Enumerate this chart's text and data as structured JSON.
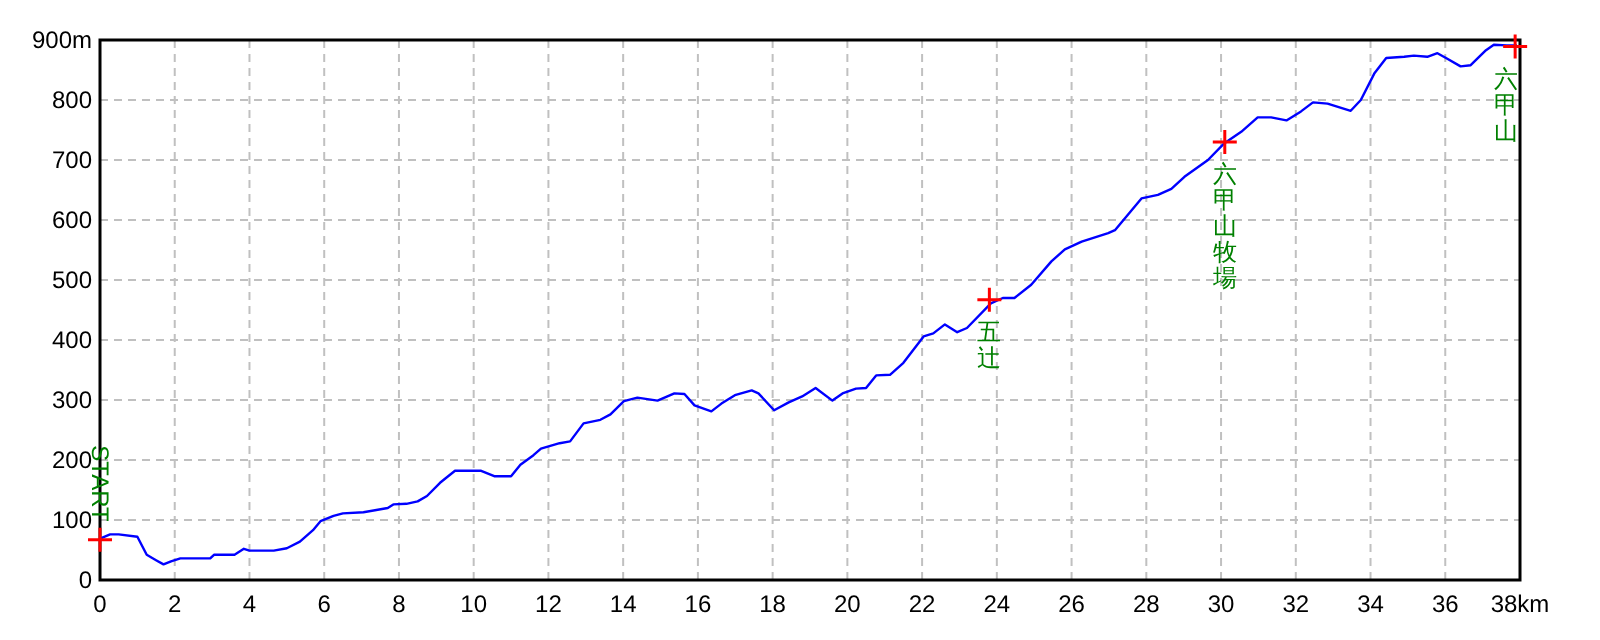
{
  "chart_data": {
    "type": "line",
    "xlim": [
      0,
      38
    ],
    "ylim": [
      0,
      900
    ],
    "grid": true,
    "xticks": [
      0,
      2,
      4,
      6,
      8,
      10,
      12,
      14,
      16,
      18,
      20,
      22,
      24,
      26,
      28,
      30,
      32,
      34,
      36,
      {
        "value": 38,
        "label": "38km"
      }
    ],
    "yticks": [
      0,
      100,
      200,
      300,
      400,
      500,
      600,
      700,
      800,
      {
        "value": 900,
        "label": "900m"
      }
    ],
    "series": [
      {
        "type": "line",
        "color": "#0000ff",
        "marker": "none",
        "x": [
          0,
          0.27,
          0.5,
          1.0,
          1.25,
          1.5,
          1.7,
          1.9,
          2.15,
          2.95,
          3.05,
          3.6,
          3.85,
          4.0,
          4.65,
          5.0,
          5.35,
          5.7,
          5.9,
          6.25,
          6.5,
          7.05,
          7.7,
          7.85,
          8.2,
          8.5,
          8.75,
          9.1,
          9.5,
          10.2,
          10.55,
          11.0,
          11.25,
          11.6,
          11.8,
          12.3,
          12.58,
          12.94,
          13.39,
          13.66,
          14.02,
          14.38,
          14.92,
          15.37,
          15.64,
          15.91,
          16.36,
          16.63,
          16.99,
          17.44,
          17.62,
          18.04,
          18.43,
          18.79,
          19.15,
          19.6,
          19.87,
          20.23,
          20.5,
          20.77,
          21.14,
          21.5,
          22.04,
          22.3,
          22.61,
          22.94,
          23.2,
          23.84,
          24.16,
          24.47,
          24.92,
          25.46,
          25.82,
          26.27,
          26.98,
          27.16,
          27.87,
          28.31,
          28.67,
          29.02,
          29.65,
          30.09,
          30.54,
          30.98,
          31.34,
          31.75,
          32.14,
          32.46,
          32.85,
          33.47,
          33.74,
          34.1,
          34.42,
          34.9,
          35.16,
          35.52,
          35.79,
          36.02,
          36.41,
          36.68,
          37.09,
          37.3,
          37.65,
          37.92
        ],
        "values": [
          69,
          76,
          76,
          72,
          42,
          33,
          26,
          31,
          36,
          36,
          42,
          42,
          52,
          49,
          49,
          53,
          64,
          83,
          98,
          107,
          111,
          113,
          120,
          126,
          127,
          131,
          140,
          162,
          182,
          182,
          173,
          173,
          192,
          208,
          219,
          228,
          231,
          261,
          267,
          276,
          298,
          304,
          299,
          311,
          310,
          291,
          281,
          294,
          308,
          316,
          311,
          283,
          296,
          306,
          320,
          299,
          311,
          319,
          320,
          341,
          342,
          362,
          406,
          411,
          426,
          413,
          420,
          461,
          470,
          470,
          492,
          531,
          551,
          564,
          578,
          583,
          636,
          642,
          652,
          672,
          700,
          728,
          747,
          771,
          771,
          766,
          781,
          796,
          794,
          782,
          800,
          844,
          870,
          872,
          874,
          872,
          878,
          870,
          856,
          858,
          883,
          892,
          891,
          891
        ]
      },
      {
        "type": "scatter",
        "color": "#ff0000",
        "marker": "cross",
        "x": [
          0,
          23.8,
          30.1,
          37.87
        ],
        "values": [
          67,
          467,
          730,
          889
        ]
      }
    ],
    "annotations": [
      {
        "text": "START",
        "x": 0,
        "y": 67
      },
      {
        "text": "五辻",
        "x": 23.8,
        "y": 467
      },
      {
        "text": "六甲山牧場",
        "x": 30.1,
        "y": 730
      },
      {
        "text": "六甲山",
        "x": 37.87,
        "y": 889
      }
    ]
  }
}
